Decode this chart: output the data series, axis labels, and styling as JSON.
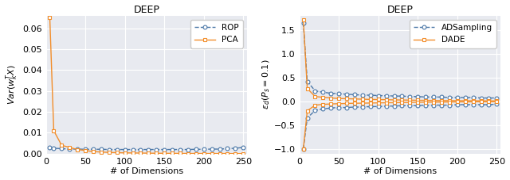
{
  "title": "DEEP",
  "xlabel": "# of Dimensions",
  "bg_color": "#e8eaf0",
  "dims": [
    5,
    10,
    20,
    30,
    40,
    50,
    60,
    70,
    80,
    90,
    100,
    110,
    120,
    130,
    140,
    150,
    160,
    170,
    180,
    190,
    200,
    210,
    220,
    230,
    240,
    250
  ],
  "rop_var": [
    0.0028,
    0.0026,
    0.0024,
    0.0022,
    0.0022,
    0.0021,
    0.0021,
    0.0021,
    0.002,
    0.002,
    0.002,
    0.002,
    0.002,
    0.002,
    0.002,
    0.002,
    0.002,
    0.002,
    0.002,
    0.0021,
    0.0021,
    0.0022,
    0.0022,
    0.0024,
    0.0026,
    0.003
  ],
  "pca_var": [
    0.065,
    0.011,
    0.004,
    0.003,
    0.002,
    0.0015,
    0.001,
    0.0008,
    0.0006,
    0.0005,
    0.0004,
    0.00035,
    0.0003,
    0.00025,
    0.0002,
    0.00018,
    0.00015,
    0.00013,
    0.00011,
    0.0001,
    9e-05,
    8e-05,
    7e-05,
    6e-05,
    5e-05,
    4e-05
  ],
  "ads_upper": [
    1.65,
    0.42,
    0.22,
    0.19,
    0.17,
    0.16,
    0.15,
    0.14,
    0.13,
    0.13,
    0.12,
    0.12,
    0.11,
    0.11,
    0.1,
    0.1,
    0.09,
    0.09,
    0.09,
    0.08,
    0.08,
    0.08,
    0.08,
    0.07,
    0.07,
    0.07
  ],
  "ads_lower": [
    -1.0,
    -0.35,
    -0.19,
    -0.16,
    -0.14,
    -0.13,
    -0.13,
    -0.12,
    -0.12,
    -0.11,
    -0.11,
    -0.1,
    -0.1,
    -0.09,
    -0.09,
    -0.09,
    -0.08,
    -0.08,
    -0.08,
    -0.08,
    -0.07,
    -0.07,
    -0.07,
    -0.07,
    -0.07,
    -0.06
  ],
  "dade_upper": [
    1.72,
    0.27,
    0.1,
    0.085,
    0.07,
    0.06,
    0.055,
    0.05,
    0.045,
    0.04,
    0.038,
    0.035,
    0.03,
    0.028,
    0.025,
    0.022,
    0.02,
    0.018,
    0.016,
    0.015,
    0.013,
    0.012,
    0.011,
    0.01,
    0.009,
    0.008
  ],
  "dade_lower": [
    -1.0,
    -0.2,
    -0.08,
    -0.065,
    -0.055,
    -0.05,
    -0.045,
    -0.04,
    -0.038,
    -0.035,
    -0.032,
    -0.03,
    -0.028,
    -0.025,
    -0.022,
    -0.02,
    -0.018,
    -0.016,
    -0.015,
    -0.013,
    -0.012,
    -0.011,
    -0.01,
    -0.009,
    -0.008,
    -0.007
  ],
  "color_blue": "#4c78a8",
  "color_orange": "#f28e2b",
  "left_ylim": [
    0,
    0.066
  ],
  "right_ylim": [
    -1.1,
    1.8
  ],
  "xlim_left": [
    0,
    255
  ],
  "xlim_right": [
    0,
    255
  ],
  "left_yticks": [
    0.0,
    0.01,
    0.02,
    0.03,
    0.04,
    0.05,
    0.06
  ],
  "right_yticks": [
    -1.0,
    -0.5,
    0.0,
    0.5,
    1.0,
    1.5
  ],
  "xticks": [
    0,
    50,
    100,
    150,
    200,
    250
  ]
}
